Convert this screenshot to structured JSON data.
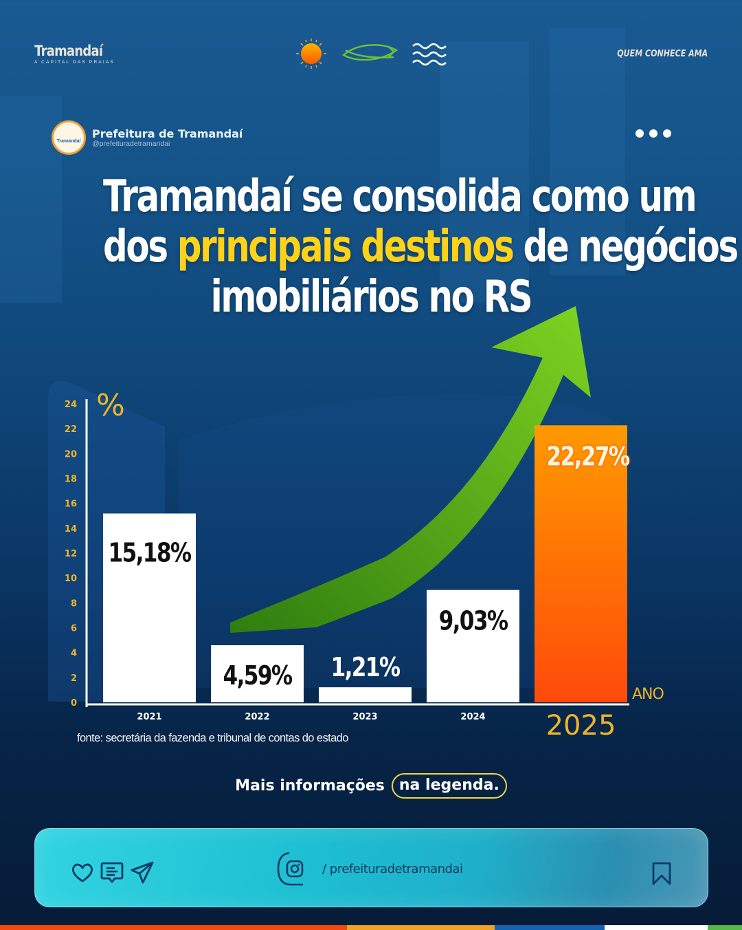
{
  "brand": {
    "name": "Tramandaí",
    "subtitle": "A CAPITAL DAS PRAIAS"
  },
  "top_icons": [
    "sun-icon",
    "fish-icon",
    "waves-icon"
  ],
  "tagline": "QUEM CONHECE AMA",
  "profile": {
    "avatar_text": "Tramandaí",
    "name": "Prefeitura de Tramandaí",
    "handle": "@prefeituradetramandai",
    "menu_icon": "more-dots-icon"
  },
  "headline": {
    "line1": "Tramandaí se consolida como um",
    "line2_pre": "dos ",
    "line2_highlight": "principais destinos",
    "line2_post": " de negócios",
    "line3": "imobiliários no RS"
  },
  "colors": {
    "highlight": "#ffd21a",
    "axis_tick": "#f0b429",
    "bar_default": "#ffffff",
    "bar_highlight_top": "#ff9a00",
    "bar_highlight_bottom": "#ff4a0a",
    "arrow_light": "#7ed321",
    "arrow_dark": "#2f7d10"
  },
  "chart_data": {
    "type": "bar",
    "title": "",
    "ylabel": "%",
    "xlabel": "ANO",
    "ylim": [
      0,
      24
    ],
    "yticks": [
      0,
      2,
      4,
      6,
      8,
      10,
      12,
      14,
      16,
      18,
      20,
      22,
      24
    ],
    "categories": [
      "2021",
      "2022",
      "2023",
      "2024",
      "2025"
    ],
    "values": [
      15.18,
      4.59,
      1.21,
      9.03,
      22.27
    ],
    "value_labels": [
      "15,18%",
      "4,59%",
      "1,21%",
      "9,03%",
      "22,27%"
    ],
    "highlight_index": 4,
    "grid": false,
    "annotation": "upward-trend-arrow"
  },
  "source": "fonte: secretária da fazenda e tribunal de contas do estado",
  "more_info": {
    "text": "Mais informações",
    "pill": "na legenda."
  },
  "footer": {
    "icons": [
      "heart-icon",
      "comment-icon",
      "send-icon"
    ],
    "instagram_handle": "/ prefeituradetramandai",
    "bookmark_icon": "bookmark-icon"
  },
  "stripe_colors": [
    "#f24a0c",
    "#f0a322",
    "#1463b0",
    "#ffffff",
    "#55b94a"
  ]
}
